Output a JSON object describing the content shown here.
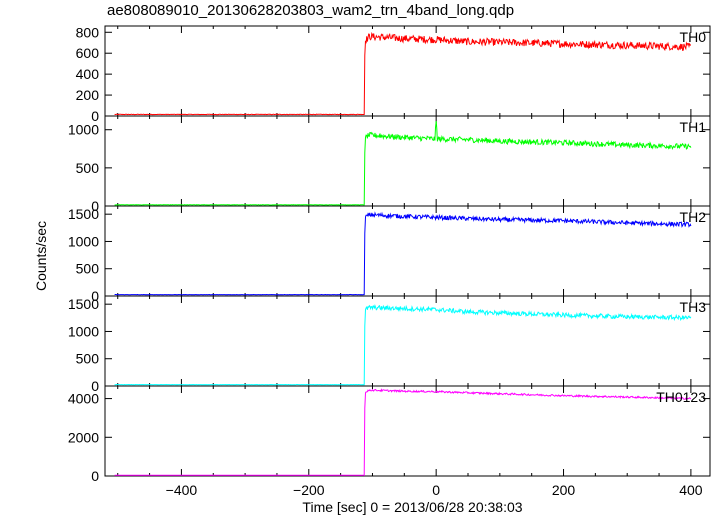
{
  "title": "ae808089010_20130628203803_wam2_trn_4band_long.qdp",
  "chart_data": {
    "type": "line",
    "title": "ae808089010_20130628203803_wam2_trn_4band_long.qdp",
    "xlabel": "Time [sec] 0 = 2013/06/28 20:38:03",
    "ylabel": "Counts/sec",
    "xlim": [
      -520,
      430
    ],
    "x_ticks": [
      -400,
      -200,
      0,
      200,
      400
    ],
    "x_tick_labels": [
      "−400",
      "−200",
      "0",
      "200",
      "400"
    ],
    "grid": false,
    "panels": [
      {
        "name": "TH0",
        "color": "#ff0000",
        "ylim": [
          0,
          860
        ],
        "y_ticks": [
          0,
          200,
          400,
          600,
          800
        ],
        "x": [
          -505,
          -113,
          -112,
          -111,
          -105,
          -50,
          0,
          50,
          100,
          200,
          300,
          400
        ],
        "y": [
          15,
          15,
          580,
          720,
          760,
          740,
          730,
          710,
          705,
          690,
          675,
          660
        ],
        "noise": 35
      },
      {
        "name": "TH1",
        "color": "#00ff00",
        "ylim": [
          0,
          1180
        ],
        "y_ticks": [
          0,
          500,
          1000
        ],
        "x": [
          -505,
          -113,
          -112,
          -111,
          -105,
          -50,
          -2,
          0,
          2,
          50,
          100,
          200,
          300,
          400
        ],
        "y": [
          15,
          15,
          700,
          900,
          930,
          900,
          880,
          1110,
          880,
          870,
          850,
          830,
          800,
          780
        ],
        "noise": 35
      },
      {
        "name": "TH2",
        "color": "#0000ff",
        "ylim": [
          0,
          1650
        ],
        "y_ticks": [
          0,
          500,
          1000,
          1500
        ],
        "x": [
          -505,
          -113,
          -112,
          -111,
          -105,
          -50,
          0,
          50,
          100,
          200,
          300,
          400
        ],
        "y": [
          25,
          25,
          1150,
          1450,
          1490,
          1460,
          1440,
          1420,
          1400,
          1380,
          1340,
          1310
        ],
        "noise": 40
      },
      {
        "name": "TH3",
        "color": "#00ffff",
        "ylim": [
          0,
          1650
        ],
        "y_ticks": [
          0,
          500,
          1000,
          1500
        ],
        "x": [
          -505,
          -113,
          -112,
          -111,
          -105,
          -50,
          0,
          50,
          100,
          200,
          300,
          400
        ],
        "y": [
          25,
          25,
          1100,
          1400,
          1440,
          1420,
          1400,
          1360,
          1340,
          1300,
          1270,
          1250
        ],
        "noise": 40
      },
      {
        "name": "TH0123",
        "color": "#ff00ff",
        "ylim": [
          0,
          4650
        ],
        "y_ticks": [
          0,
          2000,
          4000
        ],
        "x": [
          -505,
          -113,
          -112,
          -111,
          -105,
          -50,
          0,
          50,
          100,
          200,
          300,
          400
        ],
        "y": [
          40,
          40,
          3500,
          4300,
          4440,
          4380,
          4360,
          4300,
          4250,
          4150,
          4080,
          4000
        ],
        "noise": 45
      }
    ]
  }
}
